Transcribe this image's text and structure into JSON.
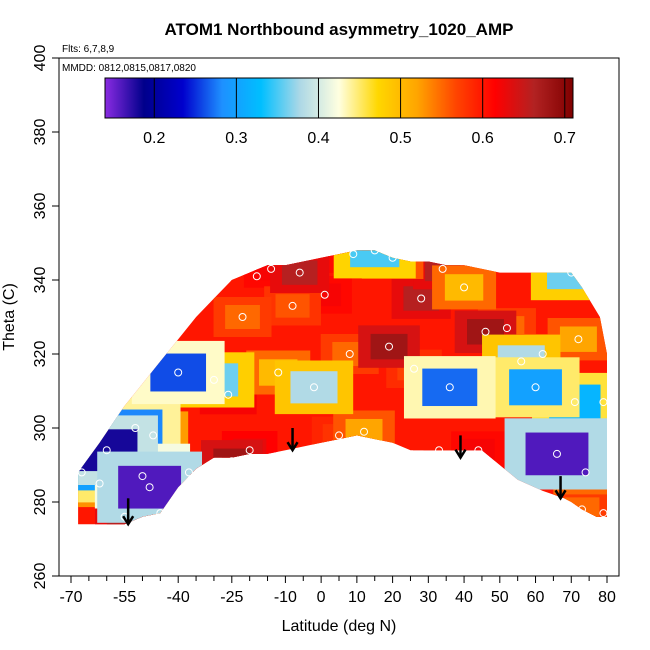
{
  "chart_data": {
    "type": "heatmap",
    "title": "ATOM1 Northbound asymmetry_1020_AMP",
    "flights_label": "Flts: 6,7,8,9",
    "dates_label": "MMDD: 0812,0815,0817,0820",
    "xlabel": "Latitude (deg N)",
    "ylabel": "Theta (C)",
    "xlim": [
      -70,
      80
    ],
    "ylim": [
      260,
      400
    ],
    "x_ticks": [
      -70,
      -55,
      -40,
      -25,
      -10,
      0,
      10,
      20,
      30,
      40,
      50,
      60,
      70,
      80
    ],
    "x_minor_ticks": [
      -65,
      -60,
      -50,
      -45,
      -35,
      -30,
      -20,
      -15,
      -5,
      5,
      15,
      25,
      35,
      45,
      55,
      65,
      75
    ],
    "y_ticks": [
      260,
      280,
      300,
      320,
      340,
      360,
      380,
      400
    ],
    "colorbar": {
      "range": [
        0.14,
        0.71
      ],
      "ticks": [
        0.2,
        0.3,
        0.4,
        0.5,
        0.6,
        0.7
      ],
      "colors": [
        "#8a2be2",
        "#00008b",
        "#0000cd",
        "#1e90ff",
        "#00bfff",
        "#add8e6",
        "#ffffe0",
        "#ffd700",
        "#ffa500",
        "#ff4500",
        "#ff0000",
        "#b22222",
        "#800000"
      ]
    },
    "domain_boundary": {
      "lat": [
        -68,
        -62,
        -55,
        -50,
        -45,
        -40,
        -35,
        -30,
        -25,
        -20,
        -15,
        -10,
        -5,
        0,
        5,
        10,
        15,
        20,
        25,
        30,
        35,
        40,
        45,
        50,
        55,
        60,
        65,
        70,
        73,
        78,
        80,
        80,
        77,
        73,
        70,
        68,
        62,
        55,
        50,
        45,
        40,
        35,
        30,
        25,
        20,
        15,
        10,
        5,
        0,
        -5,
        -10,
        -15,
        -20,
        -25,
        -30,
        -35,
        -40,
        -45,
        -50,
        -55,
        -60,
        -65,
        -68
      ],
      "theta": [
        288,
        296,
        306,
        312,
        318,
        324,
        330,
        335,
        340,
        342,
        344,
        344,
        345,
        346,
        347,
        348,
        348,
        346,
        345,
        345,
        344,
        344,
        343,
        342,
        342,
        342,
        342,
        342,
        338,
        330,
        320,
        276,
        276,
        278,
        280,
        281,
        283,
        286,
        290,
        294,
        294,
        294,
        294,
        294,
        296,
        297,
        298,
        297,
        296,
        295,
        294,
        293,
        293,
        292,
        292,
        289,
        284,
        277,
        276,
        274,
        274,
        274,
        274
      ]
    },
    "values": [
      {
        "lat": -67,
        "theta": 288,
        "value": 0.3
      },
      {
        "lat": -62,
        "theta": 285,
        "value": 0.46
      },
      {
        "lat": -60,
        "theta": 294,
        "value": 0.18
      },
      {
        "lat": -55,
        "theta": 276,
        "value": 0.66
      },
      {
        "lat": -52,
        "theta": 300,
        "value": 0.28
      },
      {
        "lat": -50,
        "theta": 287,
        "value": 0.24
      },
      {
        "lat": -48,
        "theta": 284,
        "value": 0.16
      },
      {
        "lat": -47,
        "theta": 298,
        "value": 0.45
      },
      {
        "lat": -45,
        "theta": 277,
        "value": 0.55
      },
      {
        "lat": -40,
        "theta": 315,
        "value": 0.26
      },
      {
        "lat": -37,
        "theta": 288,
        "value": 0.6
      },
      {
        "lat": -30,
        "theta": 313,
        "value": 0.36
      },
      {
        "lat": -26,
        "theta": 309,
        "value": 0.64
      },
      {
        "lat": -25,
        "theta": 291,
        "value": 0.68
      },
      {
        "lat": -22,
        "theta": 330,
        "value": 0.55
      },
      {
        "lat": -20,
        "theta": 294,
        "value": 0.63
      },
      {
        "lat": -18,
        "theta": 341,
        "value": 0.6
      },
      {
        "lat": -14,
        "theta": 343,
        "value": 0.62
      },
      {
        "lat": -12,
        "theta": 315,
        "value": 0.5
      },
      {
        "lat": -8,
        "theta": 333,
        "value": 0.56
      },
      {
        "lat": -6,
        "theta": 342,
        "value": 0.66
      },
      {
        "lat": -2,
        "theta": 311,
        "value": 0.38
      },
      {
        "lat": 1,
        "theta": 336,
        "value": 0.62
      },
      {
        "lat": 5,
        "theta": 298,
        "value": 0.58
      },
      {
        "lat": 8,
        "theta": 320,
        "value": 0.55
      },
      {
        "lat": 9,
        "theta": 347,
        "value": 0.62
      },
      {
        "lat": 12,
        "theta": 299,
        "value": 0.52
      },
      {
        "lat": 15,
        "theta": 348,
        "value": 0.35
      },
      {
        "lat": 19,
        "theta": 322,
        "value": 0.68
      },
      {
        "lat": 20,
        "theta": 346,
        "value": 0.52
      },
      {
        "lat": 26,
        "theta": 316,
        "value": 0.57
      },
      {
        "lat": 28,
        "theta": 335,
        "value": 0.66
      },
      {
        "lat": 34,
        "theta": 343,
        "value": 0.66
      },
      {
        "lat": 36,
        "theta": 311,
        "value": 0.27
      },
      {
        "lat": 33,
        "theta": 294,
        "value": 0.6
      },
      {
        "lat": 40,
        "theta": 338,
        "value": 0.5
      },
      {
        "lat": 44,
        "theta": 294,
        "value": 0.62
      },
      {
        "lat": 46,
        "theta": 326,
        "value": 0.68
      },
      {
        "lat": 52,
        "theta": 327,
        "value": 0.55
      },
      {
        "lat": 56,
        "theta": 318,
        "value": 0.38
      },
      {
        "lat": 60,
        "theta": 311,
        "value": 0.3
      },
      {
        "lat": 62,
        "theta": 320,
        "value": 0.55
      },
      {
        "lat": 66,
        "theta": 293,
        "value": 0.16
      },
      {
        "lat": 70,
        "theta": 342,
        "value": 0.36
      },
      {
        "lat": 71,
        "theta": 307,
        "value": 0.32
      },
      {
        "lat": 72,
        "theta": 324,
        "value": 0.52
      },
      {
        "lat": 73,
        "theta": 278,
        "value": 0.55
      },
      {
        "lat": 74,
        "theta": 288,
        "value": 0.5
      },
      {
        "lat": 79,
        "theta": 277,
        "value": 0.56
      },
      {
        "lat": 79,
        "theta": 307,
        "value": 0.6
      }
    ],
    "arrows": [
      {
        "lat": -54,
        "theta_top": 281,
        "theta_bottom": 274
      },
      {
        "lat": -8,
        "theta_top": 300,
        "theta_bottom": 294
      },
      {
        "lat": 39,
        "theta_top": 298,
        "theta_bottom": 292
      },
      {
        "lat": 67,
        "theta_top": 287,
        "theta_bottom": 281
      }
    ]
  }
}
